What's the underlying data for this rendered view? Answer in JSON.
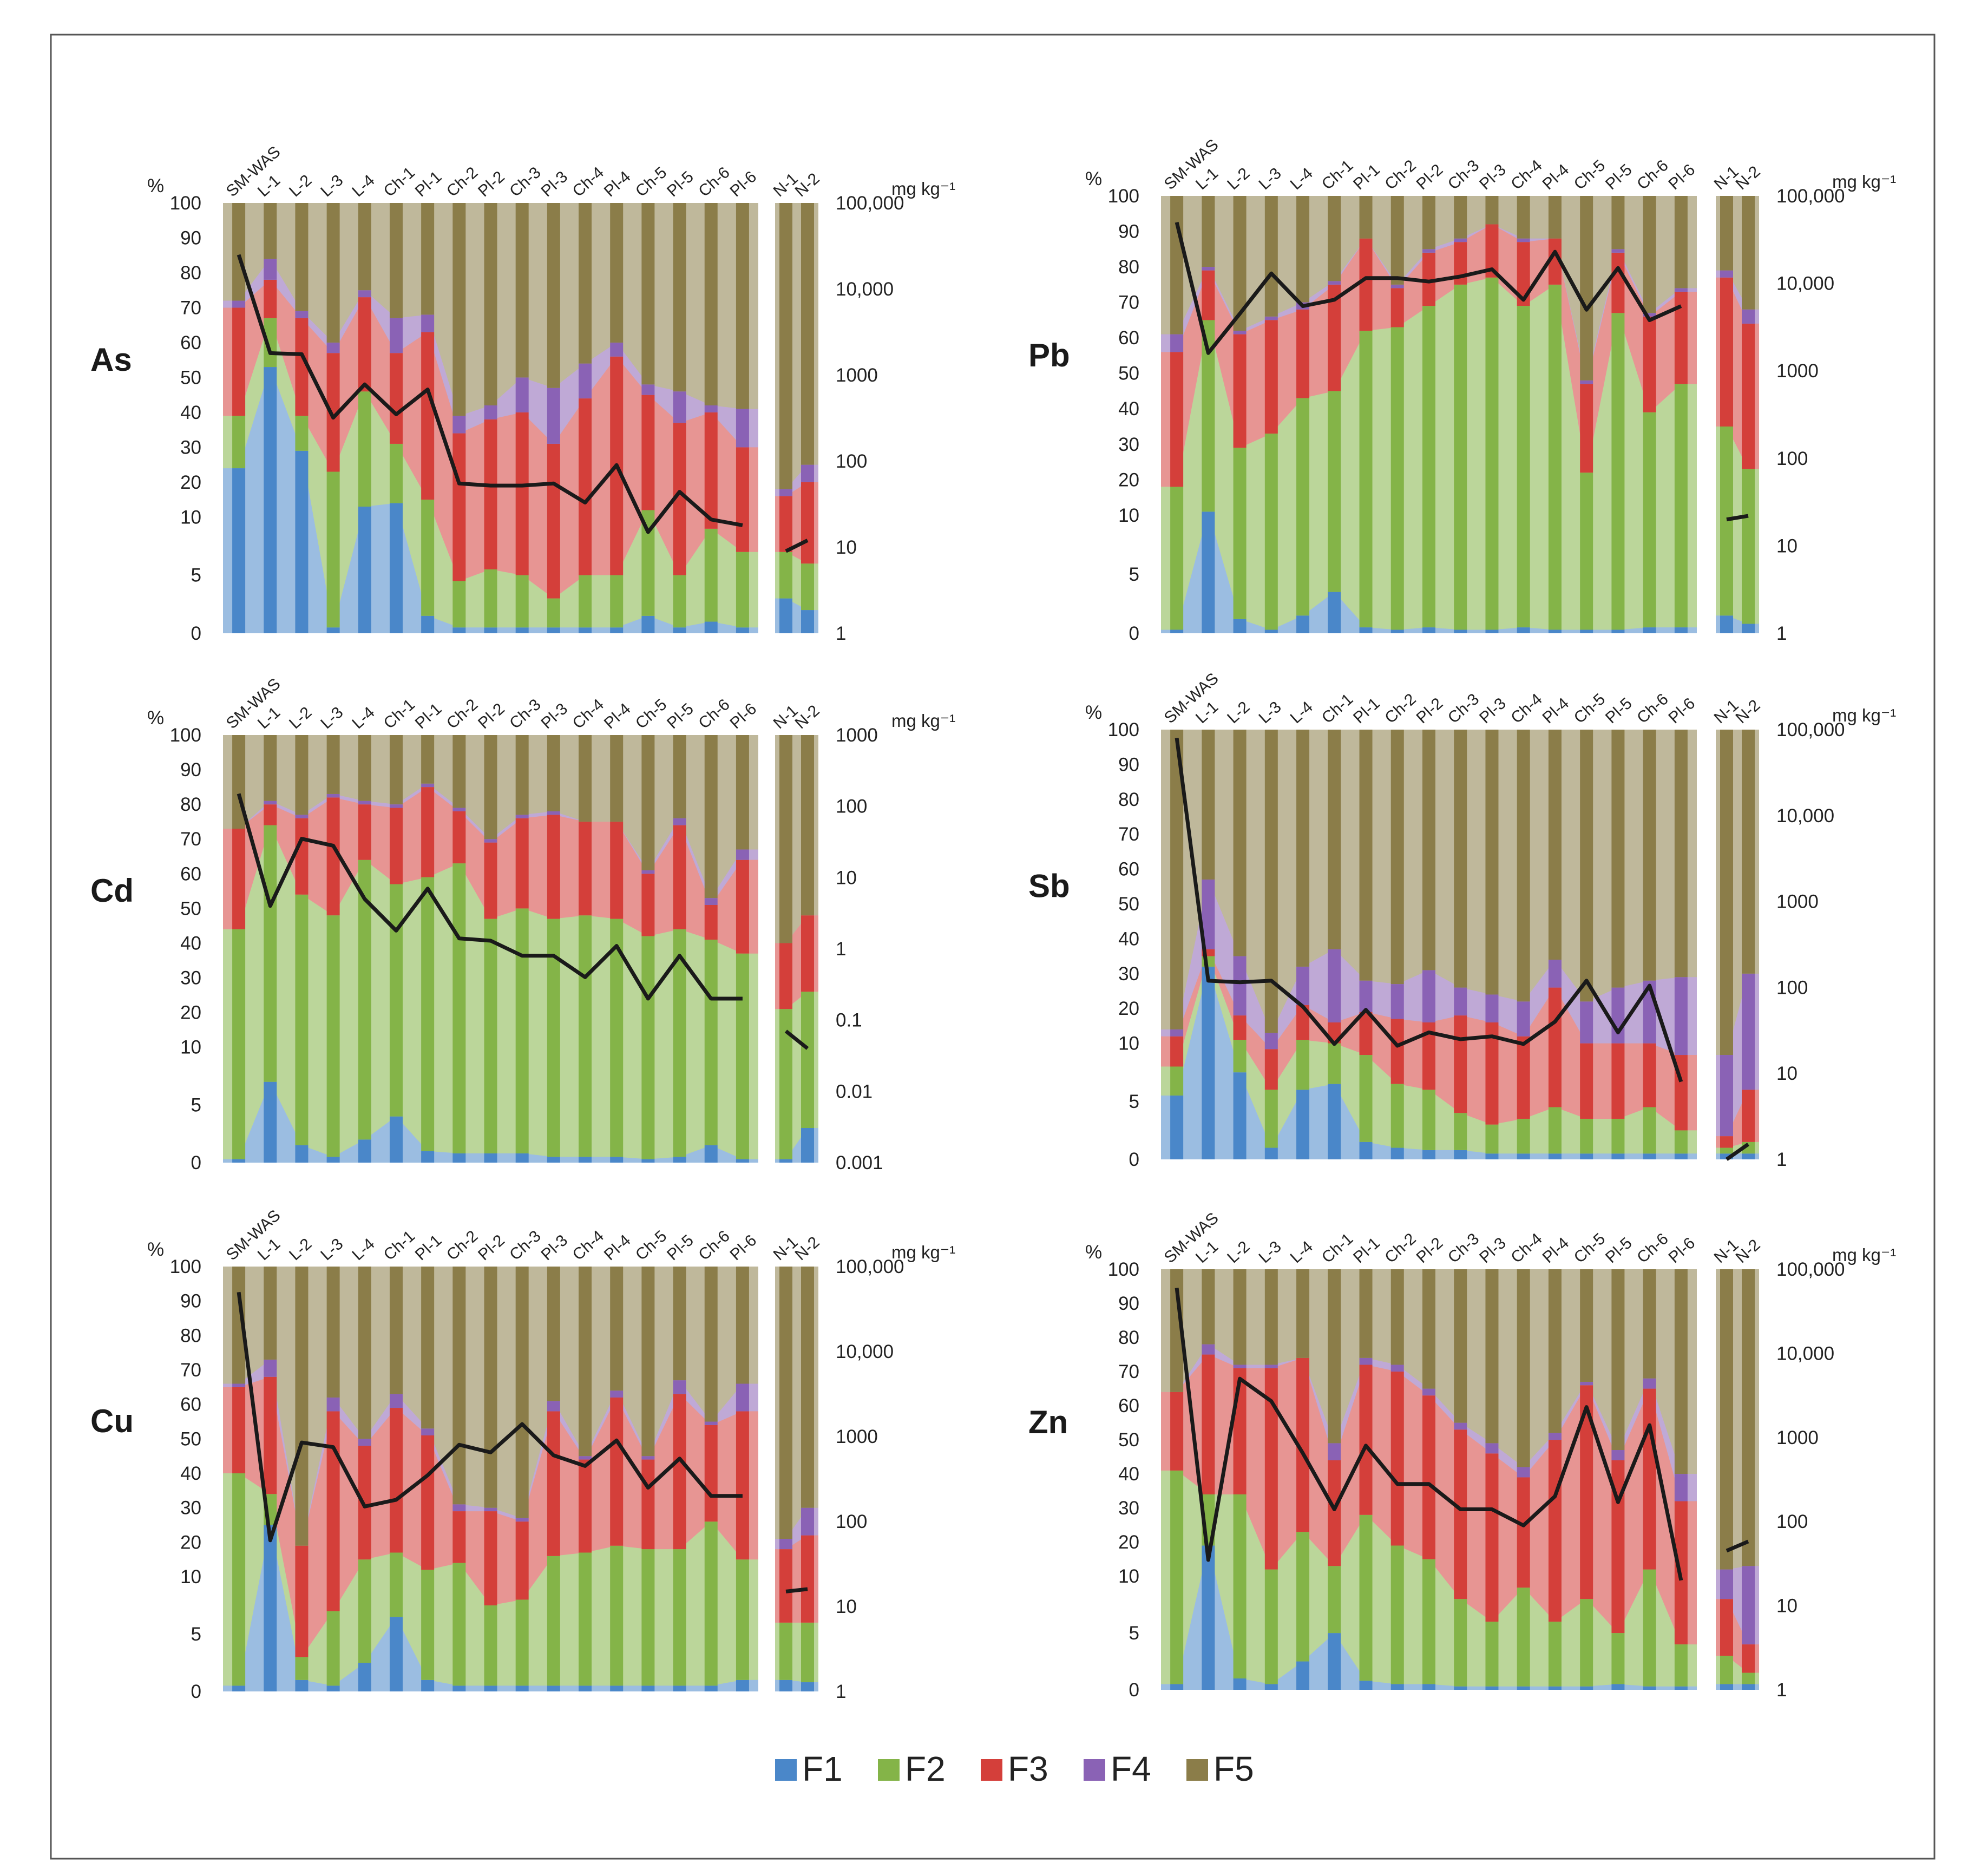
{
  "figure": {
    "colors": {
      "F1": "#4a87c9",
      "F2": "#84b448",
      "F3": "#d43f3a",
      "F4": "#8a62b5",
      "F5": "#8b7d49",
      "line": "#1a1a1a"
    },
    "legend": [
      {
        "key": "F1",
        "label": "F1"
      },
      {
        "key": "F2",
        "label": "F2"
      },
      {
        "key": "F3",
        "label": "F3"
      },
      {
        "key": "F4",
        "label": "F4"
      },
      {
        "key": "F5",
        "label": "F5"
      }
    ],
    "percent_symbol": "%",
    "percent_ticks": [
      "100",
      "90",
      "80",
      "70",
      "60",
      "50",
      "40",
      "30",
      "20",
      "10",
      "5",
      "0"
    ],
    "conc_unit": "mg kg⁻¹"
  },
  "chart_data": [
    {
      "type": "stacked-area-with-line",
      "element": "As",
      "categories": [
        "SM-WAS",
        "L-1",
        "L-2",
        "L-3",
        "L-4",
        "Ch-1",
        "Pl-1",
        "Ch-2",
        "Pl-2",
        "Ch-3",
        "Pl-3",
        "Ch-4",
        "Pl-4",
        "Ch-5",
        "Pl-5",
        "Ch-6",
        "Pl-6"
      ],
      "reference_categories": [
        "N-1",
        "N-2"
      ],
      "cumulative_top": {
        "F1": [
          24,
          53,
          29,
          0.5,
          13,
          14,
          1.5,
          0.5,
          0.5,
          0.5,
          0.5,
          0.5,
          0.5,
          1.5,
          0.5,
          1,
          0.5
        ],
        "F2": [
          39,
          67,
          39,
          23,
          46,
          31,
          15,
          4.5,
          5.5,
          5,
          3,
          5,
          5,
          12,
          5,
          9,
          7
        ],
        "F3": [
          70,
          78,
          67,
          57,
          73,
          57,
          63,
          34,
          38,
          40,
          31,
          44,
          56,
          45,
          37,
          40,
          30
        ],
        "F4": [
          72,
          84,
          69,
          60,
          75,
          67,
          68,
          39,
          42,
          50,
          47,
          54,
          60,
          48,
          46,
          42,
          41
        ]
      },
      "reference_cumulative_top": {
        "F1": [
          3,
          2
        ],
        "F2": [
          7,
          6
        ],
        "F3": [
          16,
          20
        ],
        "F4": [
          18,
          25
        ]
      },
      "concentration": [
        25000,
        1800,
        1750,
        320,
        780,
        350,
        680,
        55,
        52,
        52,
        55,
        33,
        90,
        15,
        44,
        21,
        18
      ],
      "reference_concentration": [
        9,
        12
      ],
      "conc_ticks": [
        "100,000",
        "10,000",
        "1000",
        "100",
        "10",
        "1"
      ],
      "conc_range": [
        1,
        100000
      ]
    },
    {
      "type": "stacked-area-with-line",
      "element": "Pb",
      "categories": [
        "SM-WAS",
        "L-1",
        "L-2",
        "L-3",
        "L-4",
        "Ch-1",
        "Pl-1",
        "Ch-2",
        "Pl-2",
        "Ch-3",
        "Pl-3",
        "Ch-4",
        "Pl-4",
        "Ch-5",
        "Pl-5",
        "Ch-6",
        "Pl-6"
      ],
      "reference_categories": [
        "N-1",
        "N-2"
      ],
      "cumulative_top": {
        "F1": [
          0.3,
          11,
          1.2,
          0.3,
          1.5,
          3.5,
          0.5,
          0.3,
          0.5,
          0.3,
          0.3,
          0.5,
          0.3,
          0.3,
          0.3,
          0.5,
          0.5
        ],
        "F2": [
          18,
          65,
          29,
          33,
          43,
          45,
          62,
          63,
          69,
          75,
          77,
          69,
          75,
          22,
          67,
          39,
          47
        ],
        "F3": [
          56,
          79,
          61,
          65,
          68,
          75,
          88,
          74,
          84,
          87,
          92,
          87,
          88,
          47,
          84,
          66,
          73
        ],
        "F4": [
          61,
          80,
          62,
          66,
          70,
          76,
          88,
          75,
          85,
          88,
          92,
          88,
          88,
          48,
          85,
          67,
          74
        ]
      },
      "reference_cumulative_top": {
        "F1": [
          1.5,
          0.8
        ],
        "F2": [
          35,
          23
        ],
        "F3": [
          77,
          64
        ],
        "F4": [
          79,
          68
        ]
      },
      "concentration": [
        50000,
        1600,
        4500,
        13000,
        5500,
        6500,
        11500,
        11500,
        10500,
        12000,
        14500,
        6500,
        23000,
        5000,
        15000,
        3800,
        5500
      ],
      "reference_concentration": [
        20,
        22
      ],
      "conc_ticks": [
        "100,000",
        "10,000",
        "1000",
        "100",
        "10",
        "1"
      ],
      "conc_range": [
        1,
        100000
      ]
    },
    {
      "type": "stacked-area-with-line",
      "element": "Cd",
      "categories": [
        "SM-WAS",
        "L-1",
        "L-2",
        "L-3",
        "L-4",
        "Ch-1",
        "Pl-1",
        "Ch-2",
        "Pl-2",
        "Ch-3",
        "Pl-3",
        "Ch-4",
        "Pl-4",
        "Ch-5",
        "Pl-5",
        "Ch-6",
        "Pl-6"
      ],
      "reference_categories": [
        "N-1",
        "N-2"
      ],
      "cumulative_top": {
        "F1": [
          0.3,
          7,
          1.5,
          0.5,
          2,
          4,
          1,
          0.8,
          0.8,
          0.8,
          0.5,
          0.5,
          0.5,
          0.3,
          0.5,
          1.5,
          0.3
        ],
        "F2": [
          44,
          74,
          54,
          48,
          64,
          57,
          59,
          63,
          47,
          50,
          47,
          48,
          47,
          42,
          44,
          41,
          37
        ],
        "F3": [
          73,
          80,
          76,
          82,
          80,
          79,
          85,
          78,
          69,
          76,
          77,
          75,
          75,
          60,
          74,
          51,
          64
        ],
        "F4": [
          73,
          81,
          77,
          83,
          81,
          80,
          86,
          79,
          70,
          77,
          78,
          75,
          75,
          61,
          76,
          53,
          67
        ]
      },
      "reference_cumulative_top": {
        "F1": [
          0.3,
          3
        ],
        "F2": [
          21,
          26
        ],
        "F3": [
          40,
          48
        ],
        "F4": [
          40,
          48
        ]
      },
      "concentration": [
        150,
        4,
        35,
        28,
        5,
        1.8,
        7,
        1.4,
        1.3,
        0.8,
        0.8,
        0.4,
        1.1,
        0.2,
        0.8,
        0.2,
        0.2
      ],
      "reference_concentration": [
        0.07,
        0.04
      ],
      "conc_ticks": [
        "1000",
        "100",
        "10",
        "1",
        "0.1",
        "0.01",
        "0.001"
      ],
      "conc_range": [
        0.001,
        1000
      ]
    },
    {
      "type": "stacked-area-with-line",
      "element": "Sb",
      "categories": [
        "SM-WAS",
        "L-1",
        "L-2",
        "L-3",
        "L-4",
        "Ch-1",
        "Pl-1",
        "Ch-2",
        "Pl-2",
        "Ch-3",
        "Pl-3",
        "Ch-4",
        "Pl-4",
        "Ch-5",
        "Pl-5",
        "Ch-6",
        "Pl-6"
      ],
      "reference_categories": [
        "N-1",
        "N-2"
      ],
      "cumulative_top": {
        "F1": [
          5.5,
          32,
          7.5,
          1,
          6,
          6.5,
          1.5,
          1,
          0.8,
          0.8,
          0.5,
          0.5,
          0.5,
          0.5,
          0.5,
          0.5,
          0.5
        ],
        "F2": [
          8,
          35,
          11,
          6,
          11,
          10,
          9,
          6.5,
          6,
          4,
          3,
          3.5,
          4.5,
          3.5,
          3.5,
          4.5,
          2.5
        ],
        "F3": [
          12,
          37,
          18,
          9.5,
          21,
          16,
          19,
          17,
          16,
          18,
          16,
          12,
          26,
          10,
          10,
          10,
          9
        ],
        "F4": [
          14,
          57,
          35,
          13,
          32,
          37,
          28,
          27,
          31,
          26,
          24,
          22,
          34,
          22,
          26,
          28,
          29
        ]
      },
      "reference_cumulative_top": {
        "F1": [
          0.5,
          0.5
        ],
        "F2": [
          1,
          1.5
        ],
        "F3": [
          2,
          6
        ],
        "F4": [
          9,
          30
        ]
      },
      "concentration": [
        80000,
        120,
        115,
        120,
        60,
        22,
        55,
        21,
        30,
        25,
        27,
        22,
        40,
        120,
        30,
        105,
        8
      ],
      "reference_concentration": [
        1,
        1.5
      ],
      "conc_ticks": [
        "100,000",
        "10,000",
        "1000",
        "100",
        "10",
        "1"
      ],
      "conc_range": [
        1,
        100000
      ]
    },
    {
      "type": "stacked-area-with-line",
      "element": "Cu",
      "categories": [
        "SM-WAS",
        "L-1",
        "L-2",
        "L-3",
        "L-4",
        "Ch-1",
        "Pl-1",
        "Ch-2",
        "Pl-2",
        "Ch-3",
        "Pl-3",
        "Ch-4",
        "Pl-4",
        "Ch-5",
        "Pl-5",
        "Ch-6",
        "Pl-6"
      ],
      "reference_categories": [
        "N-1",
        "N-2"
      ],
      "cumulative_top": {
        "F1": [
          0.5,
          25,
          1,
          0.5,
          2.5,
          6.5,
          1,
          0.5,
          0.5,
          0.5,
          0.5,
          0.5,
          0.5,
          0.5,
          0.5,
          0.5,
          1
        ],
        "F2": [
          40,
          34,
          3,
          7,
          15,
          17,
          12,
          14,
          7.5,
          8,
          16,
          17,
          19,
          18,
          18,
          26,
          15
        ],
        "F3": [
          65,
          68,
          19,
          58,
          48,
          59,
          51,
          29,
          29,
          26,
          58,
          44,
          62,
          44,
          63,
          54,
          58
        ],
        "F4": [
          66,
          73,
          19,
          62,
          50,
          63,
          53,
          31,
          30,
          27,
          61,
          45,
          64,
          45,
          67,
          55,
          66
        ]
      },
      "reference_cumulative_top": {
        "F1": [
          1,
          0.8
        ],
        "F2": [
          6,
          6
        ],
        "F3": [
          18,
          22
        ],
        "F4": [
          21,
          30
        ]
      },
      "concentration": [
        50000,
        60,
        850,
        750,
        150,
        180,
        350,
        800,
        650,
        1400,
        600,
        450,
        900,
        250,
        550,
        200,
        200
      ],
      "reference_concentration": [
        15,
        16
      ],
      "conc_ticks": [
        "100,000",
        "10,000",
        "1000",
        "100",
        "10",
        "1"
      ],
      "conc_range": [
        1,
        100000
      ]
    },
    {
      "type": "stacked-area-with-line",
      "element": "Zn",
      "categories": [
        "SM-WAS",
        "L-1",
        "L-2",
        "L-3",
        "L-4",
        "Ch-1",
        "Pl-1",
        "Ch-2",
        "Pl-2",
        "Ch-3",
        "Pl-3",
        "Ch-4",
        "Pl-4",
        "Ch-5",
        "Pl-5",
        "Ch-6",
        "Pl-6"
      ],
      "reference_categories": [
        "N-1",
        "N-2"
      ],
      "cumulative_top": {
        "F1": [
          0.5,
          19,
          1,
          0.5,
          2.5,
          5,
          0.8,
          0.5,
          0.5,
          0.3,
          0.3,
          0.3,
          0.3,
          0.3,
          0.5,
          0.3,
          0.3
        ],
        "F2": [
          41,
          34,
          34,
          12,
          23,
          13,
          28,
          19,
          15,
          8,
          6,
          9,
          6,
          8,
          5,
          12,
          4
        ],
        "F3": [
          64,
          75,
          71,
          71,
          74,
          44,
          72,
          70,
          63,
          53,
          46,
          39,
          50,
          66,
          44,
          65,
          32
        ],
        "F4": [
          64,
          78,
          72,
          72,
          74,
          49,
          74,
          72,
          65,
          55,
          49,
          42,
          52,
          67,
          47,
          68,
          40
        ]
      },
      "reference_cumulative_top": {
        "F1": [
          0.5,
          0.5
        ],
        "F2": [
          3,
          1.5
        ],
        "F3": [
          8,
          4
        ],
        "F4": [
          12,
          13
        ]
      },
      "concentration": [
        60000,
        35,
        5000,
        2700,
        650,
        140,
        800,
        280,
        280,
        140,
        140,
        90,
        200,
        2300,
        170,
        1400,
        20
      ],
      "reference_concentration": [
        45,
        58
      ],
      "conc_ticks": [
        "100,000",
        "10,000",
        "1000",
        "100",
        "10",
        "1"
      ],
      "conc_range": [
        1,
        100000
      ]
    }
  ]
}
